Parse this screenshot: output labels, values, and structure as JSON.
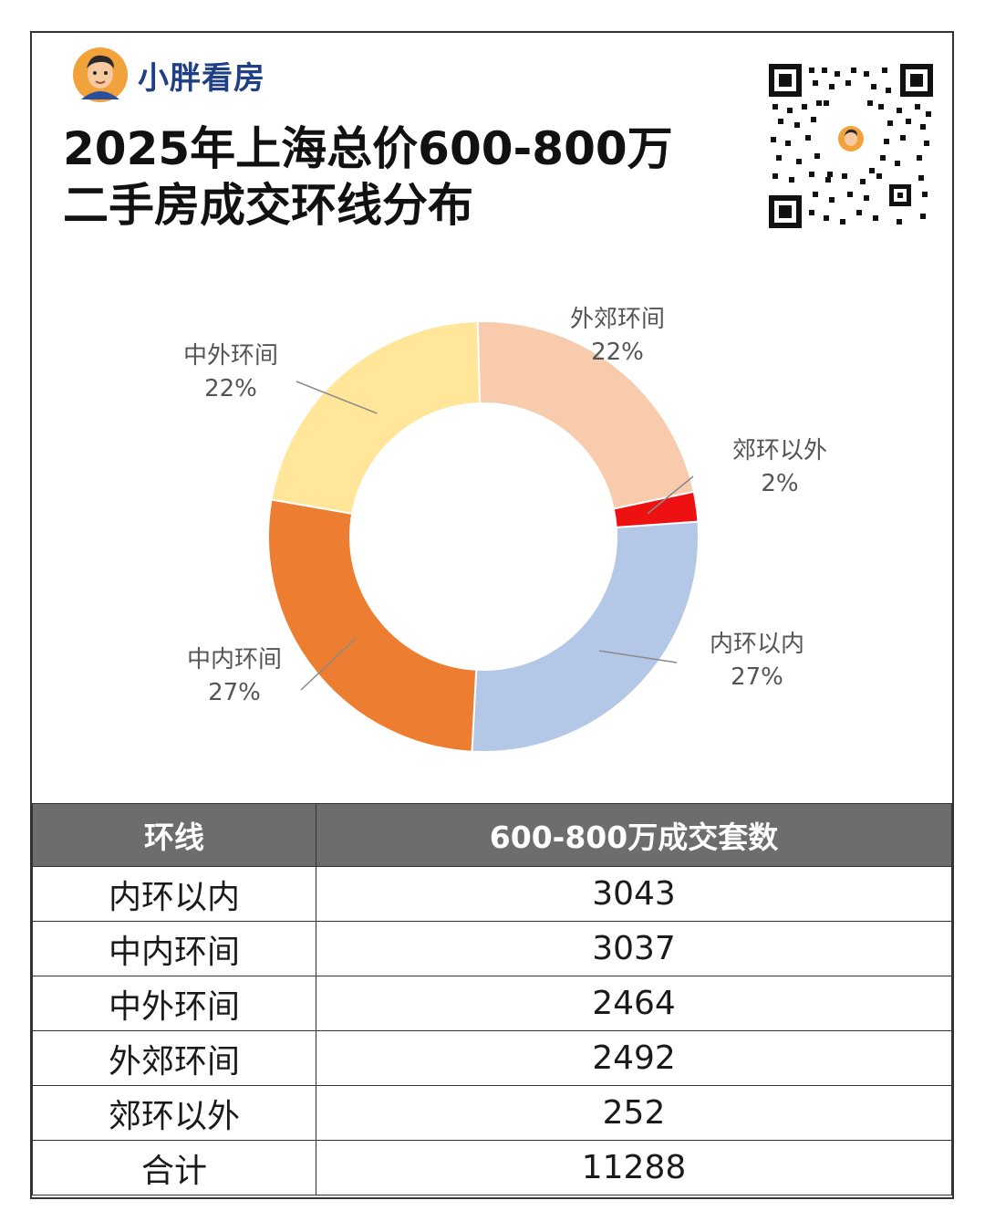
{
  "brand": {
    "name": "小胖看房",
    "logo_icon": "cartoon-avatar-icon"
  },
  "title": {
    "line1": "2025年上海总价600-800万",
    "line2": "二手房成交环线分布"
  },
  "qr_icon": "qr-code-icon",
  "colors": {
    "内环以内": "#b4c7e7",
    "中内环间": "#ed7d31",
    "中外环间": "#ffe699",
    "外郊环间": "#f8cbad",
    "郊环以外": "#ee1111"
  },
  "chart_data": {
    "type": "pie",
    "variant": "donut",
    "start": "slight offset past 3 o'clock, clockwise",
    "slices": [
      {
        "label": "内环以内",
        "value": 3043,
        "percent": "27%",
        "color": "#b4c7e7"
      },
      {
        "label": "中内环间",
        "value": 3037,
        "percent": "27%",
        "color": "#ed7d31"
      },
      {
        "label": "中外环间",
        "value": 2464,
        "percent": "22%",
        "color": "#ffe699"
      },
      {
        "label": "外郊环间",
        "value": 2492,
        "percent": "22%",
        "color": "#f8cbad"
      },
      {
        "label": "郊环以外",
        "value": 252,
        "percent": "2%",
        "color": "#ee1111"
      }
    ]
  },
  "table": {
    "headers": [
      "环线",
      "600-800万成交套数"
    ],
    "rows": [
      [
        "内环以内",
        "3043"
      ],
      [
        "中内环间",
        "3037"
      ],
      [
        "中外环间",
        "2464"
      ],
      [
        "外郊环间",
        "2492"
      ],
      [
        "郊环以外",
        "252"
      ],
      [
        "合计",
        "11288"
      ]
    ]
  }
}
